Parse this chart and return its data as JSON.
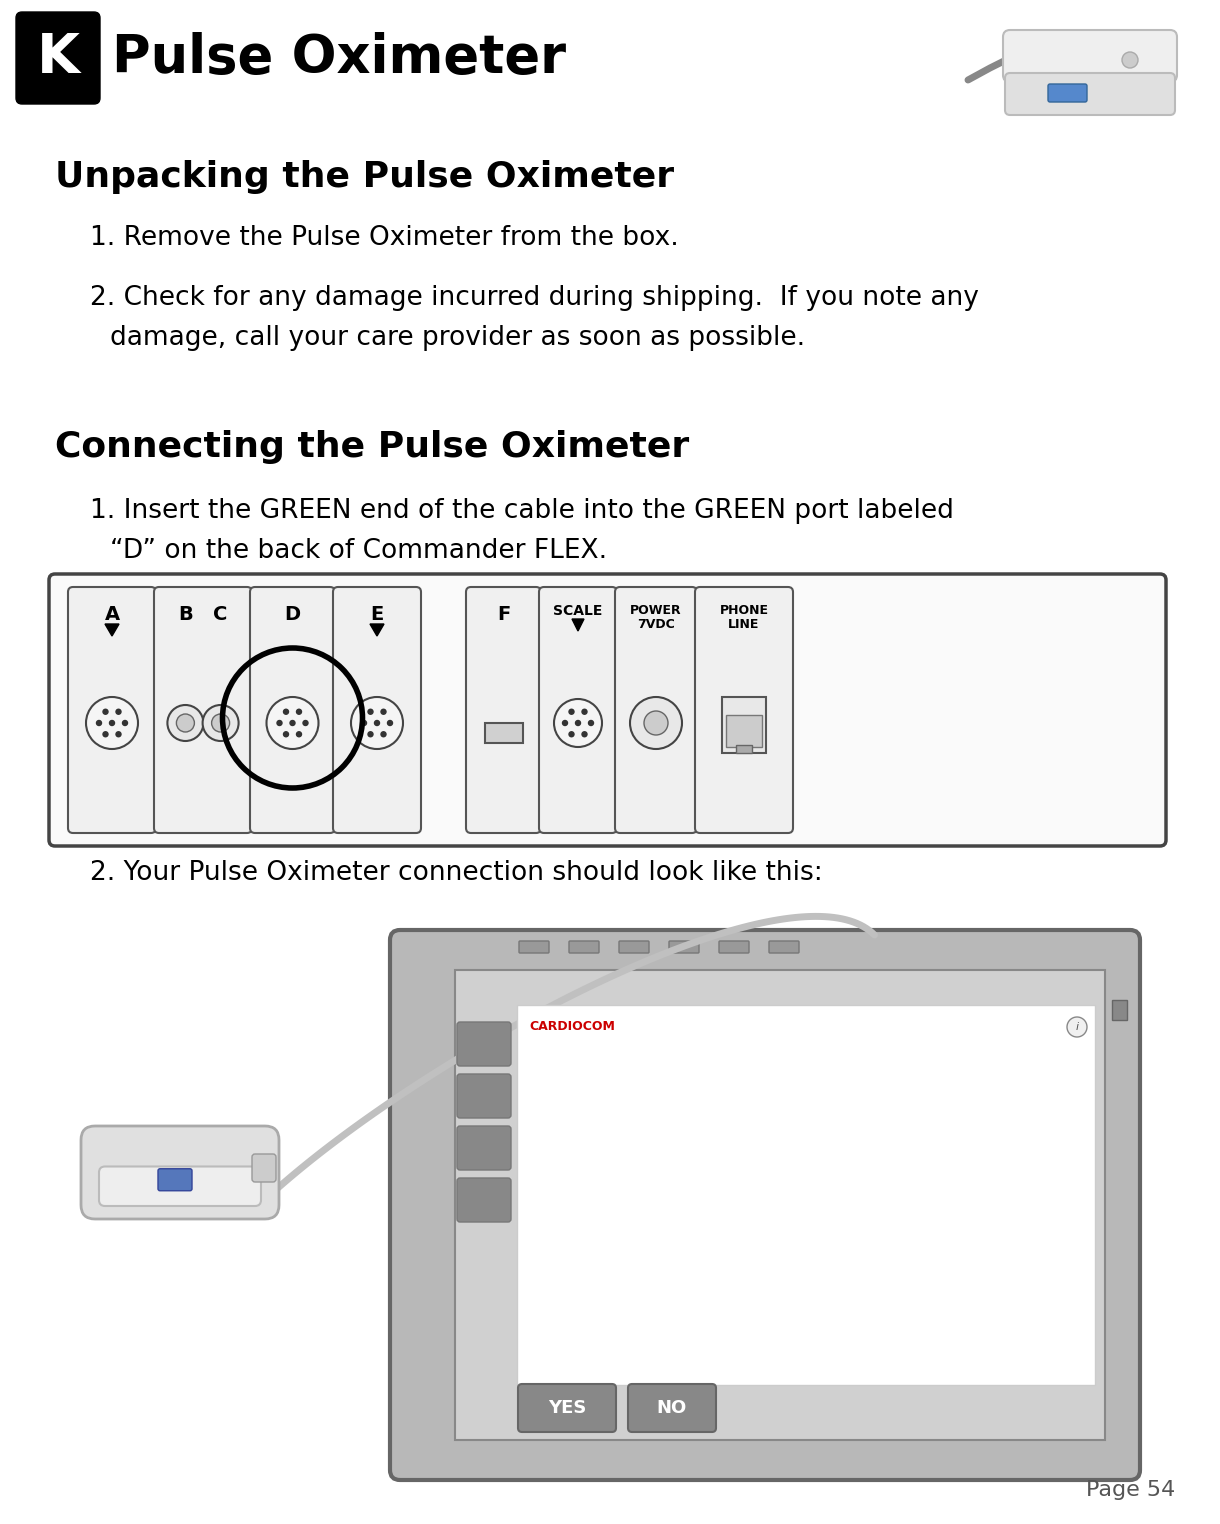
{
  "page_number": "Page 54",
  "title": "Pulse Oximeter",
  "k_label": "K",
  "section1_title": "Unpacking the Pulse Oximeter",
  "section1_line1": "1. Remove the Pulse Oximeter from the box.",
  "section1_line2a": "2. Check for any damage incurred during shipping.  If you note any",
  "section1_line2b": "    damage, call your care provider as soon as possible.",
  "section2_title": "Connecting the Pulse Oximeter",
  "section2_line1a": "1. Insert the GREEN end of the cable into the GREEN port labeled",
  "section2_line1b": "“D” on the back of Commander FLEX.",
  "section2_line2": "2. Your Pulse Oximeter connection should look like this:",
  "bg_color": "#ffffff",
  "text_color": "#000000",
  "k_bg_color": "#000000",
  "k_text_color": "#ffffff",
  "page_num_color": "#555555"
}
